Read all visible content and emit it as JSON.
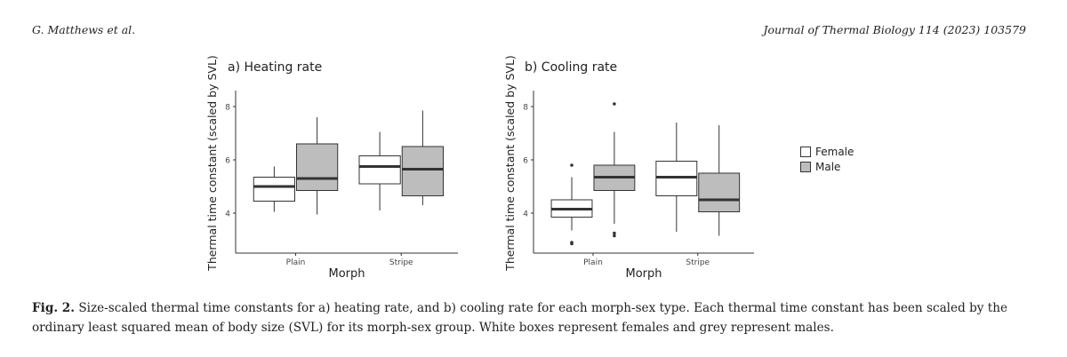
{
  "header": {
    "authors": "G. Matthews et al.",
    "journal": "Journal of Thermal Biology 114 (2023) 103579"
  },
  "legend": {
    "items": [
      {
        "label": "Female",
        "color": "#ffffff"
      },
      {
        "label": "Male",
        "color": "#bdbdbd"
      }
    ]
  },
  "caption": {
    "label": "Fig. 2.",
    "text": "Size-scaled thermal time constants for a) heating rate, and b) cooling rate for each morph-sex type. Each thermal time constant has been scaled by the ordinary least squared mean of body size (SVL) for its morph-sex group. White boxes represent females and grey represent males."
  },
  "chart_data": [
    {
      "type": "boxplot",
      "title": "a) Heating rate",
      "xlabel": "Morph",
      "ylabel": "Thermal time constant (scaled by SVL)",
      "categories": [
        "Plain",
        "Stripe"
      ],
      "yticks": [
        4,
        6,
        8
      ],
      "ylim": [
        2.5,
        8.6
      ],
      "series": [
        {
          "name": "Female",
          "color": "#ffffff",
          "boxes": [
            {
              "category": "Plain",
              "min": 4.05,
              "q1": 4.45,
              "median": 5.0,
              "q3": 5.35,
              "max": 5.75,
              "outliers": []
            },
            {
              "category": "Stripe",
              "min": 4.1,
              "q1": 5.1,
              "median": 5.75,
              "q3": 6.15,
              "max": 7.05,
              "outliers": []
            }
          ]
        },
        {
          "name": "Male",
          "color": "#bdbdbd",
          "boxes": [
            {
              "category": "Plain",
              "min": 3.95,
              "q1": 4.85,
              "median": 5.3,
              "q3": 6.6,
              "max": 7.6,
              "outliers": []
            },
            {
              "category": "Stripe",
              "min": 4.3,
              "q1": 4.65,
              "median": 5.65,
              "q3": 6.5,
              "max": 7.85,
              "outliers": []
            }
          ]
        }
      ]
    },
    {
      "type": "boxplot",
      "title": "b) Cooling rate",
      "xlabel": "Morph",
      "ylabel": "Thermal time constant (scaled by SVL)",
      "categories": [
        "Plain",
        "Stripe"
      ],
      "yticks": [
        4,
        6,
        8
      ],
      "ylim": [
        2.5,
        8.6
      ],
      "series": [
        {
          "name": "Female",
          "color": "#ffffff",
          "boxes": [
            {
              "category": "Plain",
              "min": 3.35,
              "q1": 3.85,
              "median": 4.15,
              "q3": 4.5,
              "max": 5.35,
              "outliers": [
                5.8,
                2.85,
                2.9
              ]
            },
            {
              "category": "Stripe",
              "min": 3.3,
              "q1": 4.65,
              "median": 5.35,
              "q3": 5.95,
              "max": 7.4,
              "outliers": []
            }
          ]
        },
        {
          "name": "Male",
          "color": "#bdbdbd",
          "boxes": [
            {
              "category": "Plain",
              "min": 3.6,
              "q1": 4.85,
              "median": 5.35,
              "q3": 5.8,
              "max": 7.05,
              "outliers": [
                8.1,
                3.25,
                3.15
              ]
            },
            {
              "category": "Stripe",
              "min": 3.15,
              "q1": 4.05,
              "median": 4.5,
              "q3": 5.5,
              "max": 7.3,
              "outliers": []
            }
          ]
        }
      ]
    }
  ]
}
